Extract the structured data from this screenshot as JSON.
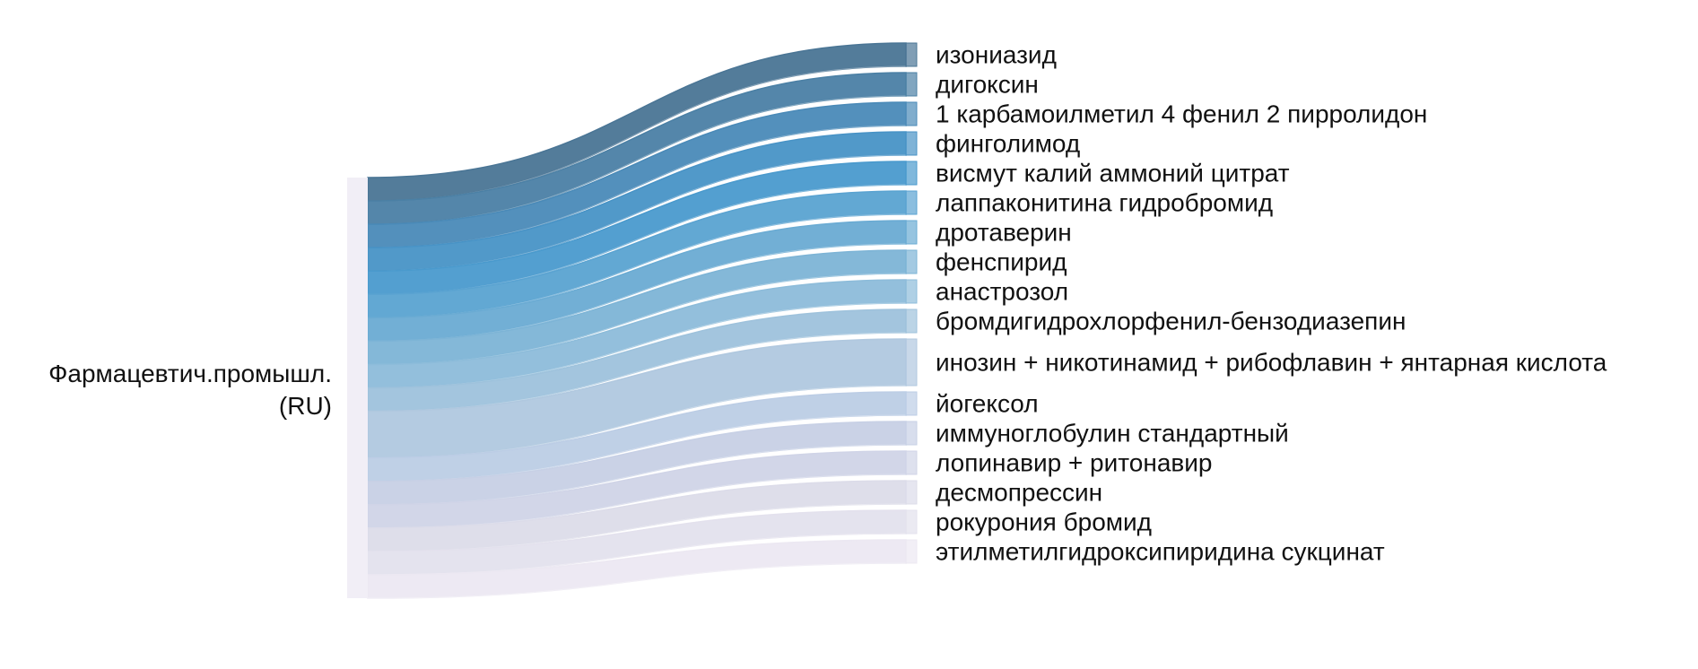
{
  "chart_data": {
    "type": "sankey",
    "source": {
      "name_line1": "Фармацевтич.промышл.",
      "name_line2": "(RU)"
    },
    "flows": [
      {
        "target": "изониазид",
        "value": 1,
        "color": "#4a7595"
      },
      {
        "target": "дигоксин",
        "value": 1,
        "color": "#4b80a5"
      },
      {
        "target": "1 карбамоилметил 4 фенил 2 пирролидон",
        "value": 1,
        "color": "#4a8ab8"
      },
      {
        "target": "финголимод",
        "value": 1,
        "color": "#4893c6"
      },
      {
        "target": "висмут калий аммоний цитрат",
        "value": 1,
        "color": "#4a9acd"
      },
      {
        "target": "лаппаконитина гидробромид",
        "value": 1,
        "color": "#5aa3d1"
      },
      {
        "target": "дротаверин",
        "value": 1,
        "color": "#6aabd3"
      },
      {
        "target": "фенспирид",
        "value": 1,
        "color": "#7db4d6"
      },
      {
        "target": "анастрозол",
        "value": 1,
        "color": "#8dbcda"
      },
      {
        "target": "бромдигидрохлорфенил-бензодиазепин",
        "value": 1,
        "color": "#9ec2dc"
      },
      {
        "target": "инозин + никотинамид + рибофлавин + янтарная кислота",
        "value": 2,
        "color": "#b0c8df"
      },
      {
        "target": "йогексол",
        "value": 1,
        "color": "#bccde5"
      },
      {
        "target": "иммуноглобулин стандартный",
        "value": 1,
        "color": "#c7d0e5"
      },
      {
        "target": "лопинавир + ритонавир",
        "value": 1,
        "color": "#d0d4e7"
      },
      {
        "target": "десмопрессин",
        "value": 1,
        "color": "#dcdce9"
      },
      {
        "target": "рокурония бромид",
        "value": 1,
        "color": "#e3e1ed"
      },
      {
        "target": "этилметилгидроксипиридина сукцинат",
        "value": 1,
        "color": "#ece8f2"
      }
    ]
  }
}
